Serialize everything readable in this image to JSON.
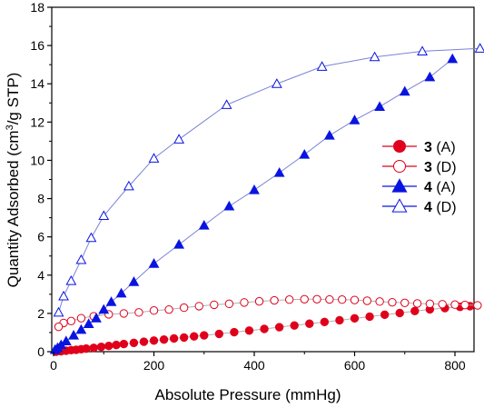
{
  "chart_data": {
    "type": "scatter",
    "xlabel": "Absolute Pressure (mmHg)",
    "ylabel_parts": [
      "Quantity Adsorbed (cm",
      "3",
      "/g STP)"
    ],
    "xlim": [
      0,
      880
    ],
    "ylim": [
      0,
      18
    ],
    "xticks": [
      0,
      200,
      400,
      600,
      800
    ],
    "yticks": [
      0,
      2,
      4,
      6,
      8,
      10,
      12,
      14,
      16,
      18
    ],
    "grid": false,
    "legend_position": "right",
    "series": [
      {
        "name": "3 (A)",
        "label_bold": "3",
        "label_rest": " (A)",
        "marker": "circle",
        "filled": true,
        "color": "#e0001b",
        "line_color": "#b0b0b0",
        "x": [
          5,
          15,
          25,
          35,
          45,
          55,
          65,
          80,
          95,
          110,
          125,
          140,
          160,
          180,
          200,
          220,
          240,
          260,
          280,
          300,
          330,
          360,
          390,
          420,
          450,
          480,
          510,
          540,
          570,
          600,
          630,
          660,
          690,
          720,
          750,
          780,
          810,
          830
        ],
        "y": [
          0.0,
          0.02,
          0.05,
          0.08,
          0.1,
          0.13,
          0.16,
          0.2,
          0.25,
          0.3,
          0.35,
          0.4,
          0.46,
          0.52,
          0.58,
          0.63,
          0.69,
          0.74,
          0.8,
          0.85,
          0.93,
          1.02,
          1.1,
          1.19,
          1.28,
          1.37,
          1.46,
          1.55,
          1.64,
          1.74,
          1.83,
          1.93,
          2.02,
          2.12,
          2.21,
          2.28,
          2.34,
          2.38
        ]
      },
      {
        "name": "3 (D)",
        "label_bold": "3",
        "label_rest": " (D)",
        "marker": "circle",
        "filled": false,
        "color": "#e0001b",
        "line_color": "#b0b0b0",
        "x": [
          845,
          820,
          800,
          775,
          750,
          725,
          700,
          675,
          650,
          625,
          600,
          575,
          550,
          525,
          500,
          470,
          440,
          410,
          380,
          350,
          320,
          290,
          260,
          230,
          200,
          170,
          140,
          110,
          80,
          55,
          35,
          20,
          10
        ],
        "y": [
          2.42,
          2.44,
          2.46,
          2.48,
          2.5,
          2.52,
          2.55,
          2.58,
          2.62,
          2.66,
          2.7,
          2.72,
          2.73,
          2.74,
          2.74,
          2.72,
          2.68,
          2.63,
          2.57,
          2.5,
          2.45,
          2.38,
          2.3,
          2.2,
          2.15,
          2.05,
          2.0,
          1.95,
          1.85,
          1.75,
          1.6,
          1.5,
          1.3
        ]
      },
      {
        "name": "4 (A)",
        "label_bold": "4",
        "label_rest": " (A)",
        "marker": "triangle",
        "filled": true,
        "color": "#0a14e0",
        "line_color": "#7a82d6",
        "x": [
          3,
          8,
          15,
          25,
          40,
          55,
          70,
          85,
          100,
          115,
          135,
          160,
          200,
          250,
          300,
          350,
          400,
          450,
          500,
          550,
          600,
          650,
          700,
          750,
          795
        ],
        "y": [
          0.1,
          0.2,
          0.35,
          0.55,
          0.85,
          1.15,
          1.45,
          1.75,
          2.2,
          2.6,
          3.05,
          3.65,
          4.6,
          5.6,
          6.6,
          7.6,
          8.45,
          9.35,
          10.3,
          11.3,
          12.1,
          12.8,
          13.6,
          14.35,
          15.3
        ]
      },
      {
        "name": "4 (D)",
        "label_bold": "4",
        "label_rest": " (D)",
        "marker": "triangle",
        "filled": false,
        "color": "#0a14e0",
        "line_color": "#7a82d6",
        "x": [
          850,
          735,
          640,
          535,
          445,
          345,
          250,
          200,
          150,
          100,
          75,
          55,
          35,
          20,
          10
        ],
        "y": [
          15.85,
          15.7,
          15.4,
          14.9,
          14.0,
          12.9,
          11.1,
          10.1,
          8.65,
          7.1,
          5.95,
          4.8,
          3.7,
          2.9,
          2.05
        ]
      }
    ]
  }
}
